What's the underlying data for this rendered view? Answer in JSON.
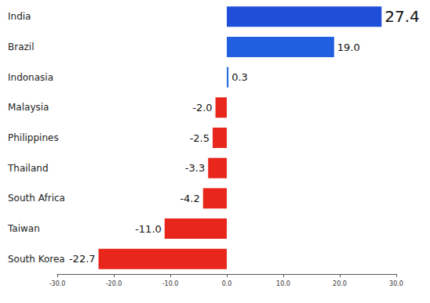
{
  "chart_data": {
    "type": "bar",
    "orientation": "horizontal",
    "categories": [
      "India",
      "Brazil",
      "Indonasia",
      "Malaysia",
      "Philippines",
      "Thailand",
      "South Africa",
      "Taiwan",
      "South Korea"
    ],
    "values": [
      27.4,
      19.0,
      0.3,
      -2.0,
      -2.5,
      -3.3,
      -4.2,
      -11.0,
      -22.7
    ],
    "value_labels": [
      "27.4",
      "19.0",
      "0.3",
      "-2.0",
      "-2.5",
      "-3.3",
      "-4.2",
      "-11.0",
      "-22.7"
    ],
    "colors": [
      "#1f4fd8",
      "#1f5fe0",
      "#2a6ee6",
      "#e8261c",
      "#e8261c",
      "#e8261c",
      "#e8261c",
      "#e8261c",
      "#e8261c"
    ],
    "xlim": [
      -30,
      30
    ],
    "xticks": [
      {
        "value": -30,
        "label": "-30.0"
      },
      {
        "value": -20,
        "label": "-20.0"
      },
      {
        "value": -10,
        "label": "-10.0"
      },
      {
        "value": 0,
        "label": "0.0"
      },
      {
        "value": 10,
        "label": "10.0"
      },
      {
        "value": 20,
        "label": "20.0"
      },
      {
        "value": 30,
        "label": "30.0"
      }
    ],
    "grid": false,
    "data_labels": true
  }
}
